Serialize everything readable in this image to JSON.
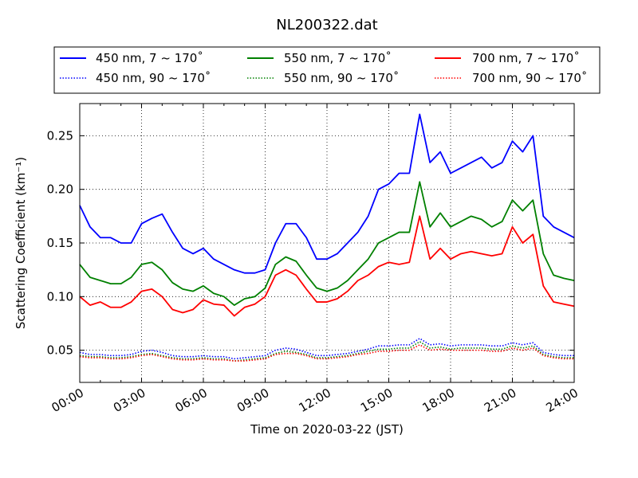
{
  "chart_data": {
    "type": "line",
    "title": "NL200322.dat",
    "xlabel": "Time on 2020-03-22 (JST)",
    "ylabel": "Scattering Coefficient (km⁻¹)",
    "xlim": [
      0,
      24
    ],
    "ylim": [
      0.02,
      0.28
    ],
    "x_ticks": [
      {
        "label": "00:00",
        "hour": 0
      },
      {
        "label": "03:00",
        "hour": 3
      },
      {
        "label": "06:00",
        "hour": 6
      },
      {
        "label": "09:00",
        "hour": 9
      },
      {
        "label": "12:00",
        "hour": 12
      },
      {
        "label": "15:00",
        "hour": 15
      },
      {
        "label": "18:00",
        "hour": 18
      },
      {
        "label": "21:00",
        "hour": 21
      },
      {
        "label": "24:00",
        "hour": 24
      }
    ],
    "y_ticks": [
      {
        "label": "0.05",
        "value": 0.05
      },
      {
        "label": "0.10",
        "value": 0.1
      },
      {
        "label": "0.15",
        "value": 0.15
      },
      {
        "label": "0.20",
        "value": 0.2
      },
      {
        "label": "0.25",
        "value": 0.25
      }
    ],
    "grid": true,
    "legend_position": "top, above plot",
    "x": [
      0,
      0.5,
      1,
      1.5,
      2,
      2.5,
      3,
      3.5,
      4,
      4.5,
      5,
      5.5,
      6,
      6.5,
      7,
      7.5,
      8,
      8.5,
      9,
      9.5,
      10,
      10.5,
      11,
      11.5,
      12,
      12.5,
      13,
      13.5,
      14,
      14.5,
      15,
      15.5,
      16,
      16.5,
      17,
      17.5,
      18,
      18.5,
      19,
      19.5,
      20,
      20.5,
      21,
      21.5,
      22,
      22.5,
      23,
      23.5,
      24
    ],
    "series": [
      {
        "name": "450 nm, 7 ~ 170˚",
        "color": "#0000ff",
        "style": "solid",
        "values": [
          0.185,
          0.165,
          0.155,
          0.155,
          0.15,
          0.15,
          0.168,
          0.173,
          0.177,
          0.16,
          0.145,
          0.14,
          0.145,
          0.135,
          0.13,
          0.125,
          0.122,
          0.122,
          0.125,
          0.15,
          0.168,
          0.168,
          0.155,
          0.135,
          0.135,
          0.14,
          0.15,
          0.16,
          0.175,
          0.2,
          0.205,
          0.215,
          0.215,
          0.27,
          0.225,
          0.235,
          0.215,
          0.22,
          0.225,
          0.23,
          0.22,
          0.225,
          0.245,
          0.235,
          0.25,
          0.175,
          0.165,
          0.16,
          0.155
        ]
      },
      {
        "name": "550 nm, 7 ~ 170˚",
        "color": "#008000",
        "style": "solid",
        "values": [
          0.13,
          0.118,
          0.115,
          0.112,
          0.112,
          0.118,
          0.13,
          0.132,
          0.125,
          0.113,
          0.107,
          0.105,
          0.11,
          0.103,
          0.1,
          0.092,
          0.098,
          0.1,
          0.108,
          0.13,
          0.137,
          0.133,
          0.12,
          0.108,
          0.105,
          0.108,
          0.115,
          0.125,
          0.135,
          0.15,
          0.155,
          0.16,
          0.16,
          0.207,
          0.165,
          0.178,
          0.165,
          0.17,
          0.175,
          0.172,
          0.165,
          0.17,
          0.19,
          0.18,
          0.19,
          0.14,
          0.12,
          0.117,
          0.115
        ]
      },
      {
        "name": "700 nm, 7 ~ 170˚",
        "color": "#ff0000",
        "style": "solid",
        "values": [
          0.1,
          0.092,
          0.095,
          0.09,
          0.09,
          0.095,
          0.105,
          0.107,
          0.1,
          0.088,
          0.085,
          0.088,
          0.097,
          0.093,
          0.092,
          0.082,
          0.09,
          0.093,
          0.1,
          0.12,
          0.125,
          0.12,
          0.107,
          0.095,
          0.095,
          0.098,
          0.105,
          0.115,
          0.12,
          0.128,
          0.132,
          0.13,
          0.132,
          0.175,
          0.135,
          0.145,
          0.135,
          0.14,
          0.142,
          0.14,
          0.138,
          0.14,
          0.165,
          0.15,
          0.158,
          0.11,
          0.095,
          0.093,
          0.091
        ]
      },
      {
        "name": "450 nm, 90 ~ 170˚",
        "color": "#0000ff",
        "style": "dotted",
        "values": [
          0.048,
          0.046,
          0.046,
          0.045,
          0.045,
          0.046,
          0.049,
          0.05,
          0.048,
          0.045,
          0.044,
          0.044,
          0.045,
          0.044,
          0.044,
          0.042,
          0.043,
          0.044,
          0.045,
          0.05,
          0.052,
          0.051,
          0.048,
          0.045,
          0.045,
          0.046,
          0.047,
          0.049,
          0.051,
          0.054,
          0.054,
          0.055,
          0.055,
          0.061,
          0.055,
          0.056,
          0.054,
          0.055,
          0.055,
          0.055,
          0.054,
          0.054,
          0.057,
          0.055,
          0.057,
          0.048,
          0.046,
          0.045,
          0.045
        ]
      },
      {
        "name": "550 nm, 90 ~ 170˚",
        "color": "#008000",
        "style": "dotted",
        "values": [
          0.045,
          0.044,
          0.044,
          0.043,
          0.043,
          0.044,
          0.046,
          0.047,
          0.045,
          0.043,
          0.042,
          0.042,
          0.043,
          0.042,
          0.042,
          0.04,
          0.041,
          0.042,
          0.043,
          0.047,
          0.049,
          0.048,
          0.046,
          0.043,
          0.043,
          0.044,
          0.045,
          0.047,
          0.049,
          0.051,
          0.051,
          0.052,
          0.052,
          0.058,
          0.052,
          0.053,
          0.051,
          0.052,
          0.052,
          0.052,
          0.051,
          0.051,
          0.054,
          0.052,
          0.054,
          0.046,
          0.044,
          0.043,
          0.043
        ]
      },
      {
        "name": "700 nm, 90 ~ 170˚",
        "color": "#ff0000",
        "style": "dotted",
        "values": [
          0.044,
          0.043,
          0.043,
          0.042,
          0.042,
          0.043,
          0.045,
          0.046,
          0.044,
          0.042,
          0.041,
          0.041,
          0.042,
          0.041,
          0.041,
          0.04,
          0.04,
          0.041,
          0.042,
          0.046,
          0.047,
          0.047,
          0.045,
          0.042,
          0.042,
          0.043,
          0.044,
          0.046,
          0.047,
          0.049,
          0.049,
          0.05,
          0.05,
          0.055,
          0.05,
          0.051,
          0.05,
          0.05,
          0.05,
          0.05,
          0.049,
          0.049,
          0.052,
          0.05,
          0.052,
          0.045,
          0.043,
          0.042,
          0.042
        ]
      }
    ]
  }
}
